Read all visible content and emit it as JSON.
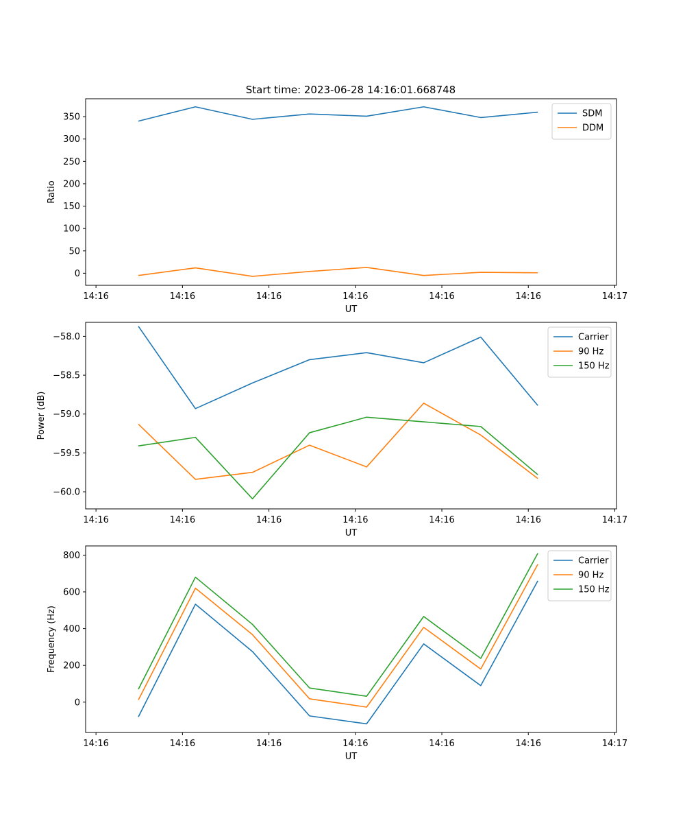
{
  "figure_title": "Start time: 2023-06-28 14:16:01.668748",
  "chart_data": [
    {
      "type": "line",
      "title": "Start time: 2023-06-28 14:16:01.668748",
      "xlabel": "UT",
      "ylabel": "Ratio",
      "x_tick_labels": [
        "14:16",
        "14:16",
        "14:16",
        "14:16",
        "14:16",
        "14:16",
        "14:17"
      ],
      "x_ticks": [
        0,
        1,
        2,
        3,
        4,
        5,
        6
      ],
      "xlim": [
        -0.12,
        6.02
      ],
      "x": [
        0.49,
        1.15,
        1.81,
        2.47,
        3.13,
        3.79,
        4.45,
        5.11
      ],
      "ylim": [
        -27,
        390
      ],
      "y_ticks": [
        0,
        50,
        100,
        150,
        200,
        250,
        300,
        350
      ],
      "legend": "top-right",
      "series": [
        {
          "name": "SDM",
          "color": "#1f77b4",
          "values": [
            340,
            372,
            344,
            356,
            351,
            372,
            348,
            360
          ]
        },
        {
          "name": "DDM",
          "color": "#ff7f0e",
          "values": [
            -5,
            12,
            -7,
            4,
            13,
            -5,
            2,
            1
          ]
        }
      ]
    },
    {
      "type": "line",
      "title": "",
      "xlabel": "UT",
      "ylabel": "Power (dB)",
      "x_tick_labels": [
        "14:16",
        "14:16",
        "14:16",
        "14:16",
        "14:16",
        "14:16",
        "14:17"
      ],
      "x_ticks": [
        0,
        1,
        2,
        3,
        4,
        5,
        6
      ],
      "xlim": [
        -0.12,
        6.02
      ],
      "x": [
        0.49,
        1.15,
        1.81,
        2.47,
        3.13,
        3.79,
        4.45,
        5.11
      ],
      "ylim": [
        -60.22,
        -57.82
      ],
      "y_ticks": [
        -60.0,
        -59.5,
        -59.0,
        -58.5,
        -58.0
      ],
      "y_tick_labels": [
        "−60.0",
        "−59.5",
        "−59.0",
        "−58.5",
        "−58.0"
      ],
      "legend": "top-right",
      "series": [
        {
          "name": "Carrier",
          "color": "#1f77b4",
          "values": [
            -57.87,
            -58.93,
            -58.6,
            -58.3,
            -58.21,
            -58.34,
            -58.01,
            -58.89
          ]
        },
        {
          "name": "90 Hz",
          "color": "#ff7f0e",
          "values": [
            -59.13,
            -59.84,
            -59.75,
            -59.4,
            -59.68,
            -58.86,
            -59.27,
            -59.83
          ]
        },
        {
          "name": "150 Hz",
          "color": "#2ca02c",
          "values": [
            -59.41,
            -59.3,
            -60.09,
            -59.24,
            -59.04,
            -59.1,
            -59.16,
            -59.78
          ]
        }
      ]
    },
    {
      "type": "line",
      "title": "",
      "xlabel": "UT",
      "ylabel": "Frequency (Hz)",
      "x_tick_labels": [
        "14:16",
        "14:16",
        "14:16",
        "14:16",
        "14:16",
        "14:16",
        "14:17"
      ],
      "x_ticks": [
        0,
        1,
        2,
        3,
        4,
        5,
        6
      ],
      "xlim": [
        -0.12,
        6.02
      ],
      "x": [
        0.49,
        1.15,
        1.81,
        2.47,
        3.13,
        3.79,
        4.45,
        5.11
      ],
      "ylim": [
        -165,
        850
      ],
      "y_ticks": [
        0,
        200,
        400,
        600,
        800
      ],
      "legend": "top-right",
      "series": [
        {
          "name": "Carrier",
          "color": "#1f77b4",
          "values": [
            -80,
            533,
            275,
            -75,
            -118,
            317,
            90,
            660
          ]
        },
        {
          "name": "90 Hz",
          "color": "#ff7f0e",
          "values": [
            12,
            620,
            367,
            18,
            -27,
            407,
            180,
            750
          ]
        },
        {
          "name": "150 Hz",
          "color": "#2ca02c",
          "values": [
            70,
            680,
            423,
            77,
            32,
            466,
            238,
            810
          ]
        }
      ]
    }
  ]
}
